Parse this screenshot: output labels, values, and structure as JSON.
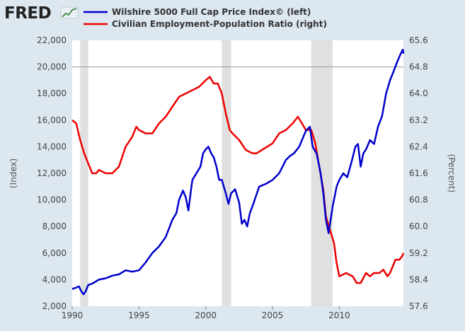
{
  "logo": {
    "text": "FRED"
  },
  "colors": {
    "left": "#0000cc",
    "right": "#ee0000",
    "background": "#dde7f0",
    "plot": "#ffffff",
    "recession": "#e0e0e0"
  },
  "chart_data": {
    "type": "line",
    "title": "",
    "xlabel": "",
    "xlim": [
      1990,
      2014.8
    ],
    "x_ticks": [
      1990,
      1995,
      2000,
      2005,
      2010
    ],
    "x_tick_labels": [
      "1990",
      "1995",
      "2000",
      "2005",
      "2010"
    ],
    "y_left": {
      "label": "(Index)",
      "lim": [
        2000,
        22000
      ],
      "ticks": [
        2000,
        4000,
        6000,
        8000,
        10000,
        12000,
        14000,
        16000,
        18000,
        20000,
        22000
      ],
      "tick_labels": [
        "2,000",
        "4,000",
        "6,000",
        "8,000",
        "10,000",
        "12,000",
        "14,000",
        "16,000",
        "18,000",
        "20,000",
        "22,000"
      ]
    },
    "y_right": {
      "label": "(Percent)",
      "lim": [
        57.6,
        65.6
      ],
      "ticks": [
        57.6,
        58.4,
        59.2,
        60.0,
        60.8,
        61.6,
        62.4,
        63.2,
        64.0,
        64.8,
        65.6
      ],
      "tick_labels": [
        "57.6",
        "58.4",
        "59.2",
        "60.0",
        "60.8",
        "61.6",
        "62.4",
        "63.2",
        "64.0",
        "64.8",
        "65.6"
      ]
    },
    "recessions": [
      [
        1990.6,
        1991.2
      ],
      [
        2001.2,
        2001.9
      ],
      [
        2007.9,
        2009.5
      ]
    ],
    "legend": [
      {
        "label": "Wilshire 5000 Full Cap Price Index© (left)",
        "axis": "left"
      },
      {
        "label": "Civilian Employment-Population Ratio (right)",
        "axis": "right"
      }
    ],
    "series": [
      {
        "name": "Wilshire 5000 Full Cap Price Index© (left)",
        "axis": "left",
        "x": [
          1990.0,
          1990.3,
          1990.5,
          1990.7,
          1990.85,
          1991.0,
          1991.2,
          1991.5,
          1992.0,
          1992.5,
          1993.0,
          1993.5,
          1994.0,
          1994.5,
          1995.0,
          1995.5,
          1996.0,
          1996.5,
          1997.0,
          1997.5,
          1997.8,
          1998.0,
          1998.3,
          1998.5,
          1998.7,
          1998.9,
          1999.0,
          1999.3,
          1999.6,
          1999.8,
          2000.0,
          2000.2,
          2000.4,
          2000.6,
          2000.8,
          2001.0,
          2001.2,
          2001.5,
          2001.7,
          2001.9,
          2002.2,
          2002.5,
          2002.7,
          2002.9,
          2003.1,
          2003.3,
          2003.6,
          2004.0,
          2004.5,
          2005.0,
          2005.5,
          2006.0,
          2006.3,
          2006.6,
          2007.0,
          2007.5,
          2007.8,
          2008.0,
          2008.3,
          2008.6,
          2008.8,
          2009.0,
          2009.2,
          2009.5,
          2009.8,
          2010.0,
          2010.3,
          2010.6,
          2010.9,
          2011.2,
          2011.4,
          2011.6,
          2011.8,
          2012.0,
          2012.3,
          2012.6,
          2012.9,
          2013.2,
          2013.5,
          2013.8,
          2014.0,
          2014.3,
          2014.6,
          2014.75,
          2014.8
        ],
        "values": [
          3300,
          3400,
          3500,
          3100,
          2900,
          3100,
          3600,
          3700,
          4000,
          4100,
          4300,
          4400,
          4700,
          4600,
          4700,
          5300,
          6000,
          6500,
          7200,
          8500,
          9000,
          10000,
          10700,
          10200,
          9200,
          10800,
          11500,
          12000,
          12500,
          13500,
          13800,
          14000,
          13500,
          13200,
          12500,
          11500,
          11500,
          10500,
          9700,
          10500,
          10800,
          9800,
          8200,
          8500,
          8000,
          9000,
          9800,
          11000,
          11200,
          11500,
          12000,
          13000,
          13300,
          13500,
          14000,
          15200,
          15500,
          14000,
          13500,
          12000,
          10500,
          8500,
          7500,
          9500,
          11000,
          11500,
          12000,
          11700,
          12800,
          14000,
          14200,
          12500,
          13500,
          13800,
          14500,
          14200,
          15500,
          16300,
          18000,
          19000,
          19500,
          20300,
          21000,
          21300,
          21000
        ]
      },
      {
        "name": "Civilian Employment-Population Ratio (right)",
        "axis": "right",
        "x": [
          1990.0,
          1990.3,
          1990.6,
          1990.9,
          1991.2,
          1991.5,
          1991.8,
          1992.0,
          1992.5,
          1993.0,
          1993.5,
          1994.0,
          1994.5,
          1994.8,
          1995.0,
          1995.5,
          1996.0,
          1996.5,
          1997.0,
          1997.5,
          1998.0,
          1998.5,
          1999.0,
          1999.5,
          2000.0,
          2000.3,
          2000.6,
          2000.9,
          2001.2,
          2001.5,
          2001.8,
          2002.0,
          2002.5,
          2003.0,
          2003.5,
          2003.8,
          2004.2,
          2004.6,
          2005.0,
          2005.5,
          2006.0,
          2006.5,
          2006.9,
          2007.2,
          2007.5,
          2007.9,
          2008.2,
          2008.5,
          2008.8,
          2009.0,
          2009.3,
          2009.6,
          2009.8,
          2010.0,
          2010.5,
          2011.0,
          2011.3,
          2011.6,
          2012.0,
          2012.3,
          2012.6,
          2013.0,
          2013.3,
          2013.6,
          2013.8,
          2014.0,
          2014.2,
          2014.5,
          2014.7,
          2014.8
        ],
        "values": [
          63.2,
          63.1,
          62.6,
          62.2,
          61.9,
          61.6,
          61.6,
          61.7,
          61.6,
          61.6,
          61.8,
          62.4,
          62.7,
          63.0,
          62.9,
          62.8,
          62.8,
          63.1,
          63.3,
          63.6,
          63.9,
          64.0,
          64.1,
          64.2,
          64.4,
          64.5,
          64.3,
          64.3,
          64.0,
          63.4,
          62.9,
          62.8,
          62.6,
          62.3,
          62.2,
          62.2,
          62.3,
          62.4,
          62.5,
          62.8,
          62.9,
          63.1,
          63.3,
          63.1,
          62.9,
          62.9,
          62.5,
          61.8,
          61.1,
          60.3,
          59.9,
          59.5,
          58.9,
          58.5,
          58.6,
          58.5,
          58.3,
          58.3,
          58.6,
          58.5,
          58.6,
          58.6,
          58.7,
          58.5,
          58.6,
          58.8,
          59.0,
          59.0,
          59.1,
          59.2
        ]
      }
    ]
  }
}
